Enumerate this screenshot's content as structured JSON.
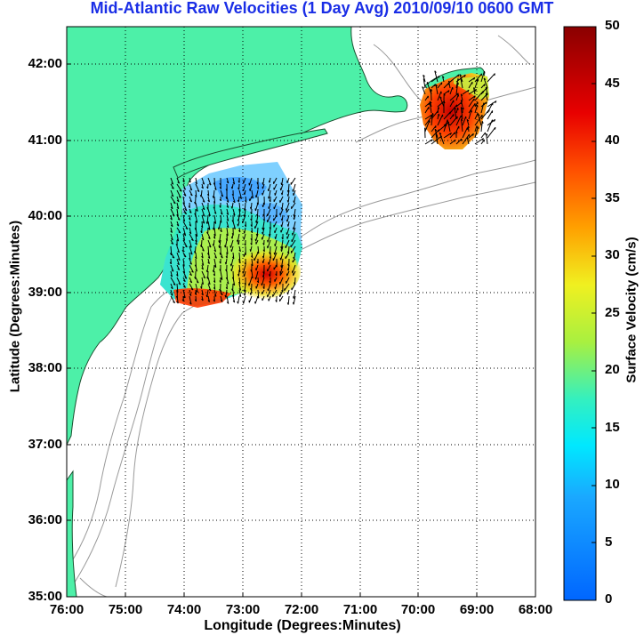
{
  "title": "Mid-Atlantic Raw Velocities (1 Day Avg) 2010/09/10 0600 GMT",
  "axes": {
    "xlabel": "Longitude (Degrees:Minutes)",
    "ylabel": "Latitude (Degrees:Minutes)",
    "xticks": [
      "76:00",
      "75:00",
      "74:00",
      "73:00",
      "72:00",
      "71:00",
      "70:00",
      "69:00",
      "68:00"
    ],
    "yticks": [
      "42:00",
      "41:00",
      "40:00",
      "39:00",
      "38:00",
      "37:00",
      "36:00",
      "35:00"
    ],
    "grid": "dotted"
  },
  "colorbar": {
    "label": "Surface Velocity (cm/s)",
    "ticks": [
      "50",
      "45",
      "40",
      "35",
      "30",
      "25",
      "20",
      "15",
      "10",
      "5",
      "0"
    ],
    "min": 0,
    "max": 50
  },
  "colors": {
    "land": "#4df0a8",
    "ocean": "#ffffff",
    "bathymetry": "#9a9a9a",
    "title": "#1a2ee6"
  }
}
